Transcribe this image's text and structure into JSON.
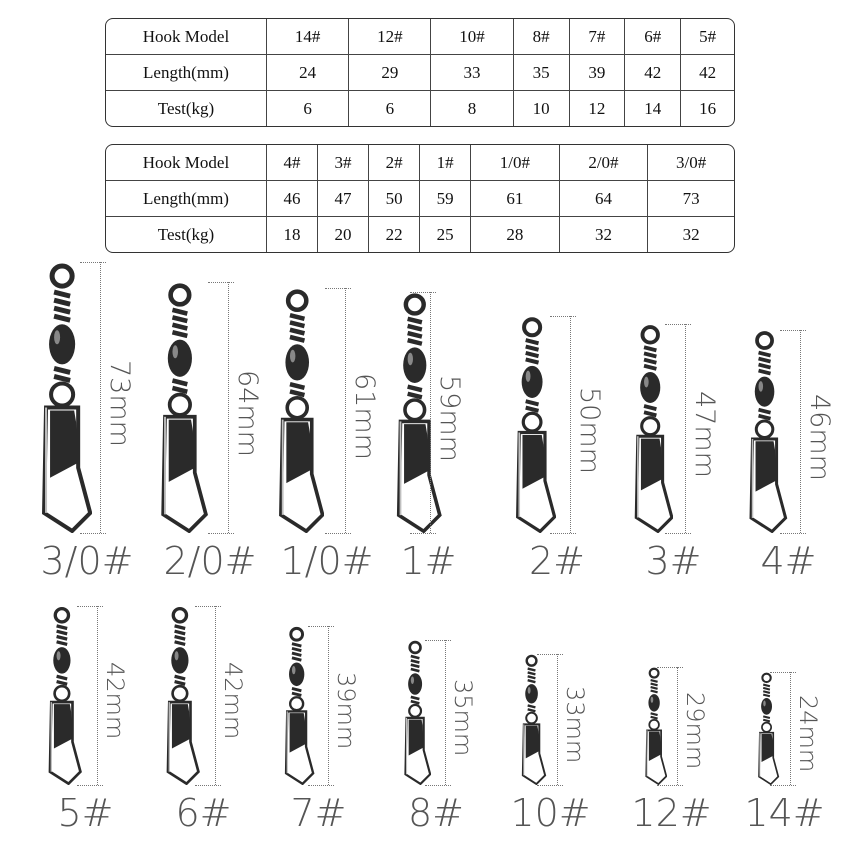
{
  "tables": [
    {
      "rows": [
        {
          "label": "Hook Model",
          "values": [
            "14#",
            "12#",
            "10#",
            "8#",
            "7#",
            "6#",
            "5#"
          ]
        },
        {
          "label": "Length(mm)",
          "values": [
            "24",
            "29",
            "33",
            "35",
            "39",
            "42",
            "42"
          ]
        },
        {
          "label": "Test(kg)",
          "values": [
            "6",
            "6",
            "8",
            "10",
            "12",
            "14",
            "16"
          ]
        }
      ]
    },
    {
      "rows": [
        {
          "label": "Hook Model",
          "values": [
            "4#",
            "3#",
            "2#",
            "1#",
            "1/0#",
            "2/0#",
            "3/0#"
          ]
        },
        {
          "label": "Length(mm)",
          "values": [
            "46",
            "47",
            "50",
            "59",
            "61",
            "64",
            "73"
          ]
        },
        {
          "label": "Test(kg)",
          "values": [
            "18",
            "20",
            "22",
            "25",
            "28",
            "32",
            "32"
          ]
        }
      ]
    }
  ],
  "swivels": [
    {
      "size": "3/0#",
      "length": "73mm"
    },
    {
      "size": "2/0#",
      "length": "64mm"
    },
    {
      "size": "1/0#",
      "length": "61mm"
    },
    {
      "size": "1#",
      "length": "59mm"
    },
    {
      "size": "2#",
      "length": "50mm"
    },
    {
      "size": "3#",
      "length": "47mm"
    },
    {
      "size": "4#",
      "length": "46mm"
    },
    {
      "size": "5#",
      "length": "42mm"
    },
    {
      "size": "6#",
      "length": "42mm"
    },
    {
      "size": "7#",
      "length": "39mm"
    },
    {
      "size": "8#",
      "length": "35mm"
    },
    {
      "size": "10#",
      "length": "33mm"
    },
    {
      "size": "12#",
      "length": "29mm"
    },
    {
      "size": "14#",
      "length": "24mm"
    }
  ],
  "colors": {
    "metal": "#2a2a2a",
    "steel": "#bfbfbf",
    "text": "#555555"
  }
}
